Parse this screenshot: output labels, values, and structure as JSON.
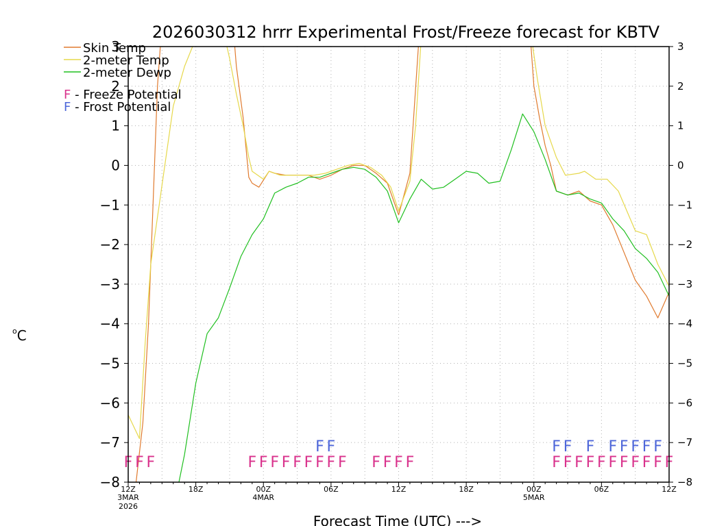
{
  "chart_data": {
    "type": "line",
    "title": "2026030312 hrrr Experimental Frost/Freeze forecast for KBTV",
    "ylabel": "°C",
    "ylabel_text": "oC",
    "xlabel": "Forecast Time (UTC) --->",
    "ylim": [
      -8,
      3
    ],
    "xlim": [
      0,
      48
    ],
    "y_ticks": [
      -8,
      -7,
      -6,
      -5,
      -4,
      -3,
      -2,
      -1,
      0,
      1,
      2,
      3
    ],
    "y_tick_labels": [
      "−8",
      "−7",
      "−6",
      "−5",
      "−4",
      "−3",
      "−2",
      "−1",
      "0",
      "1",
      "2",
      "3"
    ],
    "x_ticks": [
      {
        "h": 0,
        "label": "12Z",
        "sub1": "3MAR",
        "sub2": "2026"
      },
      {
        "h": 6,
        "label": "18Z",
        "sub1": "",
        "sub2": ""
      },
      {
        "h": 12,
        "label": "00Z",
        "sub1": "4MAR",
        "sub2": ""
      },
      {
        "h": 18,
        "label": "06Z",
        "sub1": "",
        "sub2": ""
      },
      {
        "h": 24,
        "label": "12Z",
        "sub1": "",
        "sub2": ""
      },
      {
        "h": 30,
        "label": "18Z",
        "sub1": "",
        "sub2": ""
      },
      {
        "h": 36,
        "label": "00Z",
        "sub1": "5MAR",
        "sub2": ""
      },
      {
        "h": 42,
        "label": "06Z",
        "sub1": "",
        "sub2": ""
      },
      {
        "h": 48,
        "label": "12Z",
        "sub1": "",
        "sub2": ""
      }
    ],
    "series": [
      {
        "name": "Skin Temp",
        "color": "#e07a2e",
        "points": [
          [
            0.7,
            -8.0
          ],
          [
            1.3,
            -6.5
          ],
          [
            1.8,
            -4.0
          ],
          [
            2.2,
            -1.0
          ],
          [
            2.6,
            2.0
          ],
          [
            2.9,
            3.2
          ],
          [
            9.4,
            3.2
          ],
          [
            9.6,
            2.5
          ],
          [
            10.2,
            1.2
          ],
          [
            10.7,
            -0.3
          ],
          [
            11.0,
            -0.45
          ],
          [
            11.6,
            -0.55
          ],
          [
            12.5,
            -0.15
          ],
          [
            13.0,
            -0.2
          ],
          [
            14.0,
            -0.25
          ],
          [
            15.0,
            -0.25
          ],
          [
            16.0,
            -0.25
          ],
          [
            17.0,
            -0.35
          ],
          [
            18.0,
            -0.25
          ],
          [
            19.0,
            -0.1
          ],
          [
            20.0,
            0.0
          ],
          [
            21.0,
            0.0
          ],
          [
            22.0,
            -0.2
          ],
          [
            23.0,
            -0.45
          ],
          [
            24.0,
            -1.25
          ],
          [
            25.0,
            -0.2
          ],
          [
            25.4,
            1.5
          ],
          [
            25.8,
            3.2
          ],
          [
            35.7,
            3.2
          ],
          [
            36.0,
            2.0
          ],
          [
            36.5,
            1.2
          ],
          [
            37.0,
            0.5
          ],
          [
            37.5,
            0.0
          ],
          [
            38.0,
            -0.65
          ],
          [
            39.0,
            -0.75
          ],
          [
            40.0,
            -0.65
          ],
          [
            41.0,
            -0.9
          ],
          [
            42.0,
            -1.0
          ],
          [
            43.0,
            -1.5
          ],
          [
            44.0,
            -2.2
          ],
          [
            45.0,
            -2.9
          ],
          [
            46.0,
            -3.3
          ],
          [
            47.0,
            -3.85
          ],
          [
            48.0,
            -3.2
          ]
        ]
      },
      {
        "name": "2-meter Temp",
        "color": "#e6d84a",
        "points": [
          [
            0.0,
            -6.3
          ],
          [
            1.0,
            -6.9
          ],
          [
            1.5,
            -4.5
          ],
          [
            2.0,
            -2.5
          ],
          [
            3.0,
            -0.5
          ],
          [
            4.0,
            1.5
          ],
          [
            5.0,
            2.5
          ],
          [
            6.0,
            3.2
          ],
          [
            8.6,
            3.2
          ],
          [
            9.0,
            2.7
          ],
          [
            9.6,
            1.8
          ],
          [
            10.2,
            1.0
          ],
          [
            10.7,
            0.2
          ],
          [
            11.0,
            -0.15
          ],
          [
            12.0,
            -0.35
          ],
          [
            12.5,
            -0.15
          ],
          [
            13.5,
            -0.25
          ],
          [
            14.5,
            -0.25
          ],
          [
            15.5,
            -0.25
          ],
          [
            16.5,
            -0.25
          ],
          [
            17.5,
            -0.2
          ],
          [
            18.5,
            -0.1
          ],
          [
            19.5,
            0.0
          ],
          [
            20.5,
            0.05
          ],
          [
            21.5,
            -0.05
          ],
          [
            22.5,
            -0.25
          ],
          [
            23.3,
            -0.55
          ],
          [
            24.0,
            -1.15
          ],
          [
            25.0,
            -0.4
          ],
          [
            25.5,
            1.0
          ],
          [
            26.0,
            3.2
          ],
          [
            35.8,
            3.2
          ],
          [
            36.3,
            2.2
          ],
          [
            37.0,
            1.0
          ],
          [
            38.0,
            0.2
          ],
          [
            38.8,
            -0.25
          ],
          [
            40.0,
            -0.2
          ],
          [
            40.5,
            -0.15
          ],
          [
            41.5,
            -0.35
          ],
          [
            42.5,
            -0.35
          ],
          [
            43.5,
            -0.65
          ],
          [
            45.0,
            -1.65
          ],
          [
            46.0,
            -1.75
          ],
          [
            47.0,
            -2.5
          ],
          [
            48.0,
            -3.05
          ]
        ]
      },
      {
        "name": "2-meter Dewp",
        "color": "#1fbf1f",
        "points": [
          [
            4.5,
            -8.0
          ],
          [
            5.0,
            -7.3
          ],
          [
            6.0,
            -5.5
          ],
          [
            7.0,
            -4.25
          ],
          [
            8.0,
            -3.85
          ],
          [
            9.0,
            -3.1
          ],
          [
            10.0,
            -2.3
          ],
          [
            11.0,
            -1.75
          ],
          [
            12.0,
            -1.35
          ],
          [
            13.0,
            -0.7
          ],
          [
            14.0,
            -0.55
          ],
          [
            15.0,
            -0.45
          ],
          [
            16.0,
            -0.3
          ],
          [
            17.0,
            -0.3
          ],
          [
            18.0,
            -0.2
          ],
          [
            19.0,
            -0.1
          ],
          [
            20.0,
            -0.05
          ],
          [
            21.0,
            -0.1
          ],
          [
            22.0,
            -0.3
          ],
          [
            23.0,
            -0.65
          ],
          [
            24.0,
            -1.45
          ],
          [
            25.0,
            -0.85
          ],
          [
            26.0,
            -0.35
          ],
          [
            27.0,
            -0.6
          ],
          [
            28.0,
            -0.55
          ],
          [
            29.0,
            -0.35
          ],
          [
            30.0,
            -0.15
          ],
          [
            31.0,
            -0.2
          ],
          [
            32.0,
            -0.45
          ],
          [
            33.0,
            -0.4
          ],
          [
            34.0,
            0.4
          ],
          [
            35.0,
            1.3
          ],
          [
            36.0,
            0.85
          ],
          [
            37.0,
            0.15
          ],
          [
            38.0,
            -0.65
          ],
          [
            39.0,
            -0.75
          ],
          [
            40.0,
            -0.7
          ],
          [
            41.0,
            -0.85
          ],
          [
            42.0,
            -0.95
          ],
          [
            43.0,
            -1.35
          ],
          [
            44.0,
            -1.65
          ],
          [
            45.0,
            -2.1
          ],
          [
            46.0,
            -2.35
          ],
          [
            47.0,
            -2.7
          ],
          [
            48.0,
            -3.3
          ]
        ]
      }
    ],
    "legend": [
      {
        "label": "Skin Temp",
        "color": "#e07a2e"
      },
      {
        "label": "2-meter Temp",
        "color": "#e6d84a"
      },
      {
        "label": "2-meter Dewp",
        "color": "#1fbf1f"
      }
    ],
    "potential_legend": [
      {
        "letter": "F",
        "label": " - Freeze Potential",
        "color": "#d9328c"
      },
      {
        "letter": "F",
        "label": " - Frost Potential",
        "color": "#4d66d9"
      }
    ],
    "freeze_marks": {
      "color": "#d9328c",
      "hours": [
        0,
        1,
        2,
        11,
        12,
        13,
        14,
        15,
        16,
        17,
        18,
        19,
        22,
        23,
        24,
        25,
        38,
        39,
        40,
        41,
        42,
        43,
        44,
        45,
        46,
        47,
        48
      ]
    },
    "frost_marks": {
      "color": "#4d66d9",
      "hours": [
        17,
        18,
        38,
        39,
        41,
        43,
        44,
        45,
        46,
        47
      ]
    }
  }
}
